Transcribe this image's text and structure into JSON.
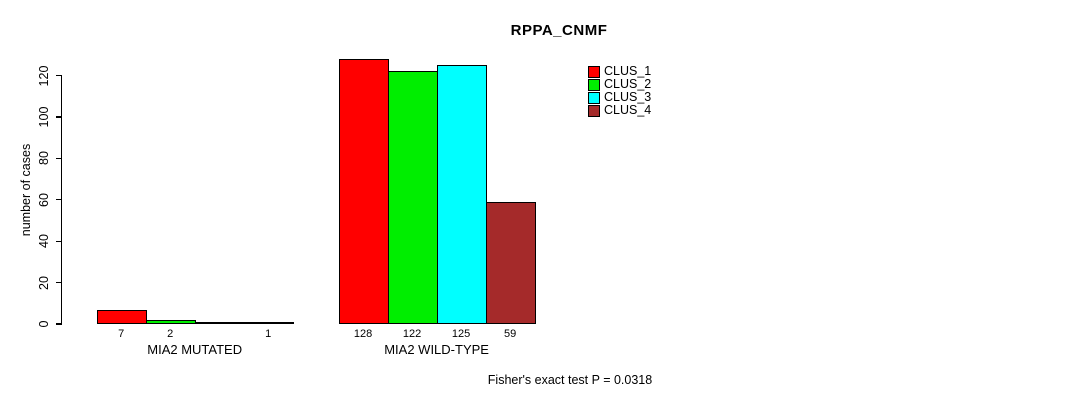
{
  "title": "RPPA_CNMF",
  "y_axis": {
    "label": "number of cases",
    "ticks": [
      0,
      20,
      40,
      60,
      80,
      100,
      120
    ]
  },
  "groups": [
    "MIA2 MUTATED",
    "MIA2 WILD-TYPE"
  ],
  "legend": {
    "items": [
      {
        "label": "CLUS_1",
        "color": "#FF0000"
      },
      {
        "label": "CLUS_2",
        "color": "#00EE00"
      },
      {
        "label": "CLUS_3",
        "color": "#00FFFF"
      },
      {
        "label": "CLUS_4",
        "color": "#A52A2A"
      }
    ]
  },
  "annotation": "Fisher's exact test P = 0.0318",
  "chart_data": {
    "type": "bar",
    "title": "RPPA_CNMF",
    "xlabel": "",
    "ylabel": "number of cases",
    "ylim": [
      0,
      130
    ],
    "yticks": [
      0,
      20,
      40,
      60,
      80,
      100,
      120
    ],
    "grid": false,
    "legend_position": "right",
    "categories": [
      "MIA2 MUTATED",
      "MIA2 WILD-TYPE"
    ],
    "series": [
      {
        "name": "CLUS_1",
        "color": "#FF0000",
        "values": [
          7,
          128
        ]
      },
      {
        "name": "CLUS_2",
        "color": "#00EE00",
        "values": [
          2,
          122
        ]
      },
      {
        "name": "CLUS_3",
        "color": "#00FFFF",
        "values": [
          0,
          125
        ]
      },
      {
        "name": "CLUS_4",
        "color": "#A52A2A",
        "values": [
          1,
          59
        ]
      }
    ],
    "bar_value_labels_visible": true,
    "zero_value_bars_drawn_as_flat_line": true,
    "annotation": "Fisher's exact test P = 0.0318"
  }
}
